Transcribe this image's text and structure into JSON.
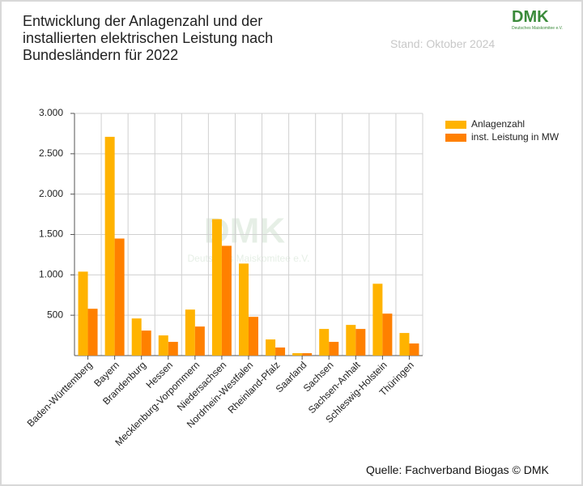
{
  "chart_data": {
    "type": "bar",
    "title": "Entwicklung der Anlagenzahl und der installierten elektrischen Leistung nach Bundesländern für 2022",
    "subtitle": "Stand: Oktober 2024",
    "source": "Quelle: Fachverband Biogas © DMK",
    "logo": "DMK",
    "logo_subtitle": "Deutsches Maiskomitee e.V.",
    "categories": [
      "Baden-Württemberg",
      "Bayern",
      "Brandenburg",
      "Hessen",
      "Mecklenburg-Vorpommern",
      "Niedersachsen",
      "Nordrhein-Westfalen",
      "Rheinland-Pfalz",
      "Saarland",
      "Sachsen",
      "Sachsen-Anhalt",
      "Schleswig-Holstein",
      "Thüringen"
    ],
    "series": [
      {
        "name": "Anlagenzahl",
        "color": "#ffb300",
        "values": [
          1040,
          2710,
          460,
          250,
          570,
          1690,
          1140,
          200,
          30,
          330,
          380,
          890,
          280
        ]
      },
      {
        "name": "inst. Leistung in MW",
        "color": "#ff8000",
        "values": [
          580,
          1450,
          310,
          170,
          360,
          1360,
          480,
          100,
          30,
          170,
          330,
          520,
          150
        ]
      }
    ],
    "ylim": [
      0,
      3000
    ],
    "yticks": [
      {
        "value": 500,
        "label": "500"
      },
      {
        "value": 1000,
        "label": "1.000"
      },
      {
        "value": 1500,
        "label": "1.500"
      },
      {
        "value": 2000,
        "label": "2.000"
      },
      {
        "value": 2500,
        "label": "2.500"
      },
      {
        "value": 3000,
        "label": "3.000"
      }
    ],
    "grid": true,
    "legend": "right"
  }
}
